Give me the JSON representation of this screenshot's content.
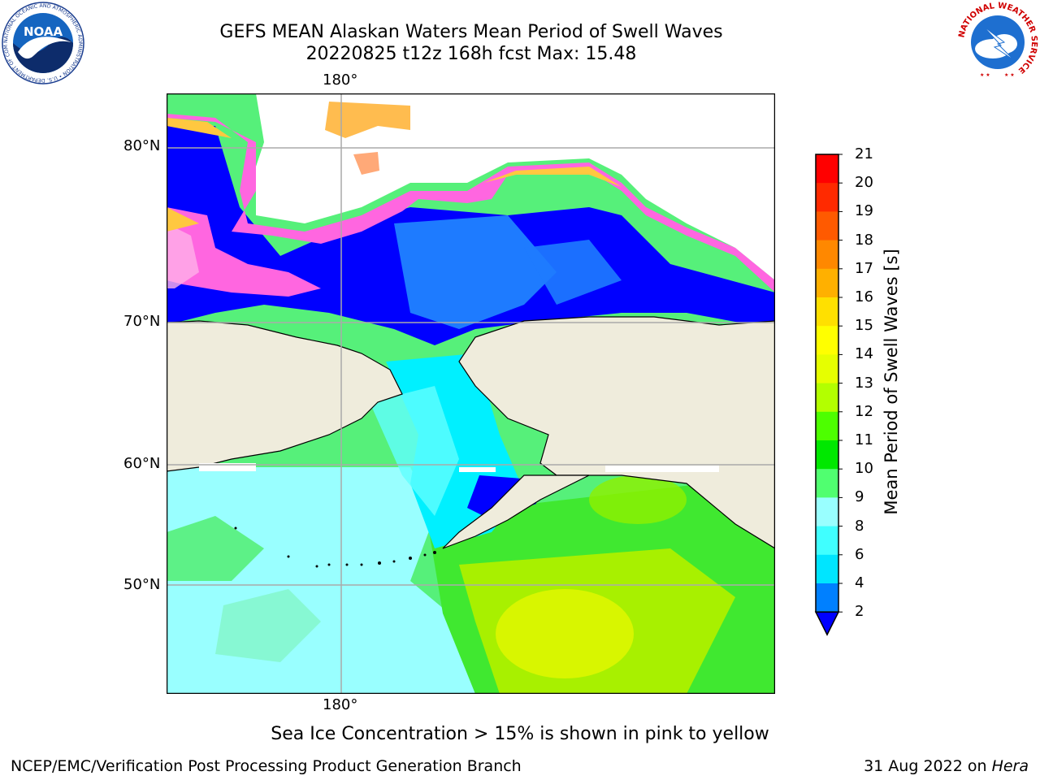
{
  "title": {
    "line1": "GEFS MEAN Alaskan Waters Mean Period of Swell Waves",
    "line2": "20220825 t12z 168h fcst   Max: 15.48"
  },
  "map": {
    "lon_label_top": "180°",
    "lon_label_bottom": "180°",
    "lat_labels": [
      "80°N",
      "70°N",
      "60°N",
      "50°N"
    ],
    "colors": {
      "land": "#efecdc",
      "ice_no_data": "#ffffff",
      "grid": "#aaaaaa",
      "coast": "#000000"
    }
  },
  "colorbar": {
    "label": "Mean Period of Swell Waves [s]",
    "ticks": [
      "21",
      "20",
      "19",
      "18",
      "17",
      "16",
      "15",
      "14",
      "13",
      "12",
      "11",
      "10",
      "9",
      "8",
      "6",
      "4",
      "2"
    ],
    "colors": [
      "#0000ff",
      "#0080ff",
      "#00e5ff",
      "#40ffff",
      "#99ffff",
      "#50ff70",
      "#00e800",
      "#4dff00",
      "#b3ff00",
      "#e6ff00",
      "#ffff00",
      "#ffe000",
      "#ffb000",
      "#ff8800",
      "#ff5a00",
      "#ff2a00",
      "#ff0000"
    ]
  },
  "caption": "Sea Ice Concentration > 15% is shown in pink to yellow",
  "footer": {
    "left": "NCEP/EMC/Verification Post Processing Product Generation Branch",
    "right_prefix": "31 Aug 2022 on ",
    "right_host": "Hera"
  },
  "logos": {
    "noaa_text": "NOAA",
    "noaa_ring": "NATIONAL OCEANIC AND ATMOSPHERIC ADMINISTRATION • U.S. DEPARTMENT OF COMMERCE •",
    "nws_ring": "NATIONAL WEATHER SERVICE"
  }
}
